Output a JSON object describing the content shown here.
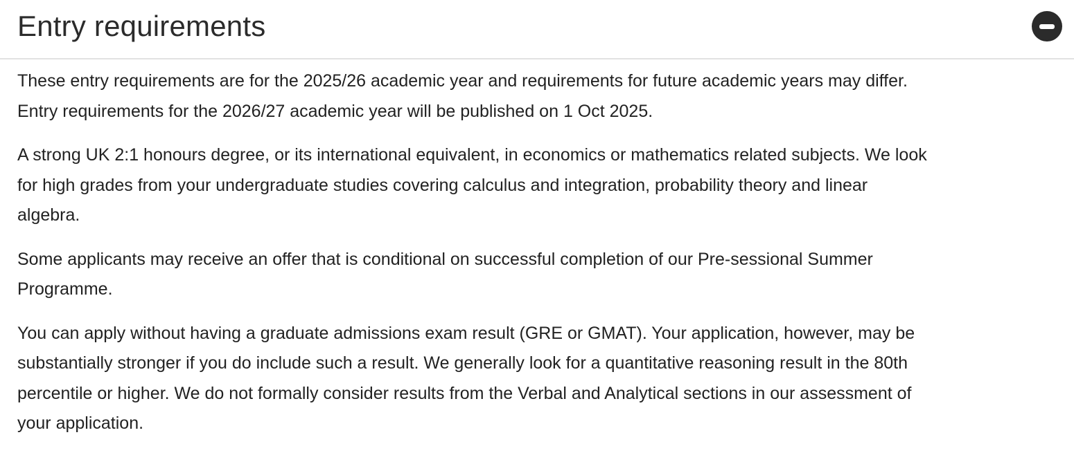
{
  "section": {
    "title": "Entry requirements",
    "toggle_icon": "collapse-minus-circle-icon",
    "expanded": true
  },
  "paragraphs": [
    {
      "lines": [
        "These entry requirements are for the 2025/26 academic year and requirements for future academic years may differ.",
        "Entry requirements for the 2026/27 academic year will be published on 1 Oct 2025."
      ]
    },
    {
      "lines": [
        "A strong UK 2:1 honours degree, or its international equivalent, in economics or mathematics related subjects. We look",
        "for high grades from your undergraduate studies covering calculus and integration, probability theory and linear",
        "algebra."
      ]
    },
    {
      "lines": [
        "Some applicants may receive an offer that is conditional on successful completion of our Pre-sessional Summer",
        "Programme."
      ]
    },
    {
      "lines": [
        "You can apply without having a graduate admissions exam result (GRE or GMAT). Your application, however, may be",
        "substantially stronger if you do include such a result. We generally look for a quantitative reasoning result in the 80th",
        "percentile or higher. We do not formally consider results from the Verbal and Analytical sections in our assessment of",
        "your application."
      ]
    }
  ]
}
